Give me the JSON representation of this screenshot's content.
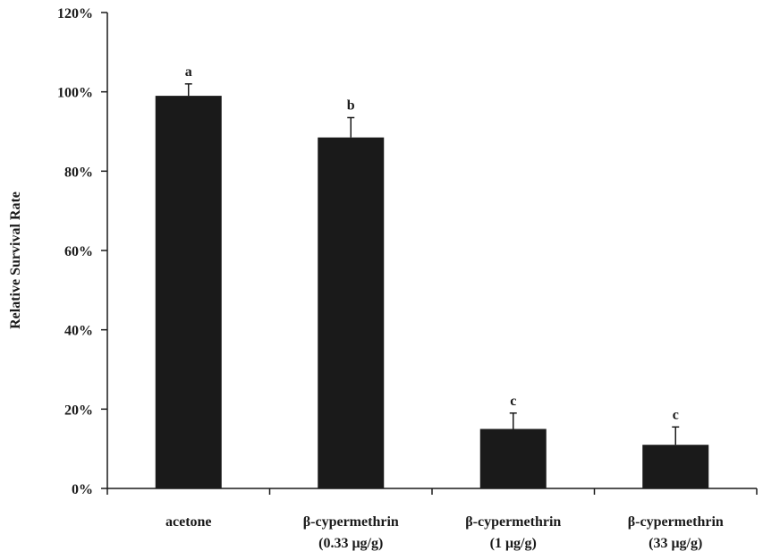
{
  "chart_data": {
    "type": "bar",
    "title": "",
    "xlabel": "",
    "ylabel": "Relative Survival Rate",
    "ylim": [
      0,
      120
    ],
    "yticks": [
      0,
      20,
      40,
      60,
      80,
      100,
      120
    ],
    "ytick_labels": [
      "0%",
      "20%",
      "40%",
      "60%",
      "80%",
      "100%",
      "120%"
    ],
    "categories": [
      {
        "line1": "acetone",
        "line2": ""
      },
      {
        "line1": "β-cypermethrin",
        "line2": "(0.33 μg/g)"
      },
      {
        "line1": "β-cypermethrin",
        "line2": "(1 μg/g)"
      },
      {
        "line1": "β-cypermethrin",
        "line2": "(33 μg/g)"
      }
    ],
    "values": [
      99,
      88.5,
      15,
      11
    ],
    "errors": [
      3,
      5,
      4,
      4.5
    ],
    "significance_labels": [
      "a",
      "b",
      "c",
      "c"
    ],
    "bar_color": "#1a1a1a",
    "axis_color": "#1a1a1a",
    "grid": false,
    "legend": "none"
  }
}
